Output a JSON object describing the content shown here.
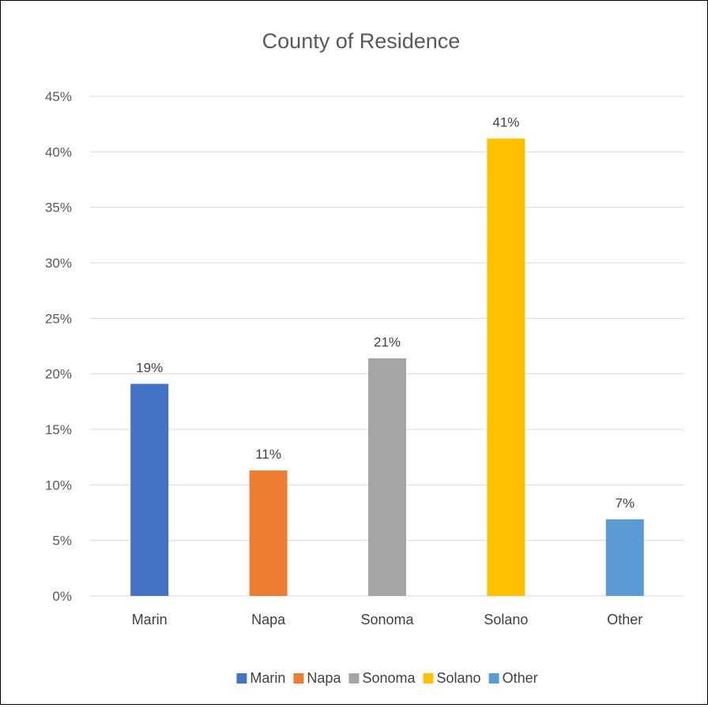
{
  "chart_data": {
    "type": "bar",
    "title": "County of Residence",
    "categories": [
      "Marin",
      "Napa",
      "Sonoma",
      "Solano",
      "Other"
    ],
    "values": [
      19.1,
      11.3,
      21.4,
      41.2,
      6.9
    ],
    "data_labels": [
      "19%",
      "11%",
      "21%",
      "41%",
      "7%"
    ],
    "colors": [
      "#4472C4",
      "#ED7D31",
      "#A5A5A5",
      "#FFC000",
      "#5B9BD5"
    ],
    "ylim": [
      0,
      45
    ],
    "ytick_values": [
      0,
      5,
      10,
      15,
      20,
      25,
      30,
      35,
      40,
      45
    ],
    "ytick_labels": [
      "0%",
      "5%",
      "10%",
      "15%",
      "20%",
      "25%",
      "30%",
      "35%",
      "40%",
      "45%"
    ],
    "xlabel": "",
    "ylabel": "",
    "grid": true,
    "legend": {
      "position": "bottom",
      "entries": [
        "Marin",
        "Napa",
        "Sonoma",
        "Solano",
        "Other"
      ]
    }
  }
}
